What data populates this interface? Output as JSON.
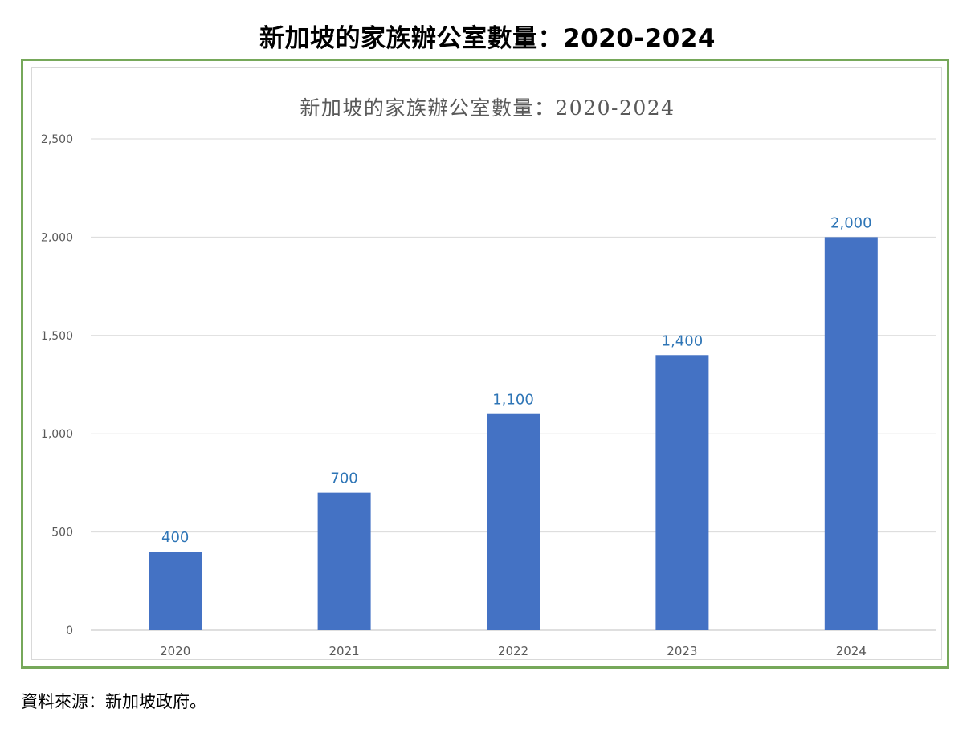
{
  "page": {
    "title": "新加坡的家族辦公室數量：2020-2024",
    "source": "資料來源：新加坡政府。"
  },
  "colors": {
    "border": "#76a85a",
    "bar": "#4472c4",
    "data_label": "#2e75b6",
    "grid": "#d9d9d9"
  },
  "chart_data": {
    "type": "bar",
    "title": "新加坡的家族辦公室數量：2020-2024",
    "categories": [
      "2020",
      "2021",
      "2022",
      "2023",
      "2024"
    ],
    "values": [
      400,
      700,
      1100,
      1400,
      2000
    ],
    "data_labels": [
      "400",
      "700",
      "1,100",
      "1,400",
      "2,000"
    ],
    "ylim": [
      0,
      2500
    ],
    "yticks": [
      0,
      500,
      1000,
      1500,
      2000,
      2500
    ],
    "ytick_labels": [
      "0",
      "500",
      "1,000",
      "1,500",
      "2,000",
      "2,500"
    ],
    "xlabel": "",
    "ylabel": "",
    "grid": true,
    "legend": "none"
  }
}
